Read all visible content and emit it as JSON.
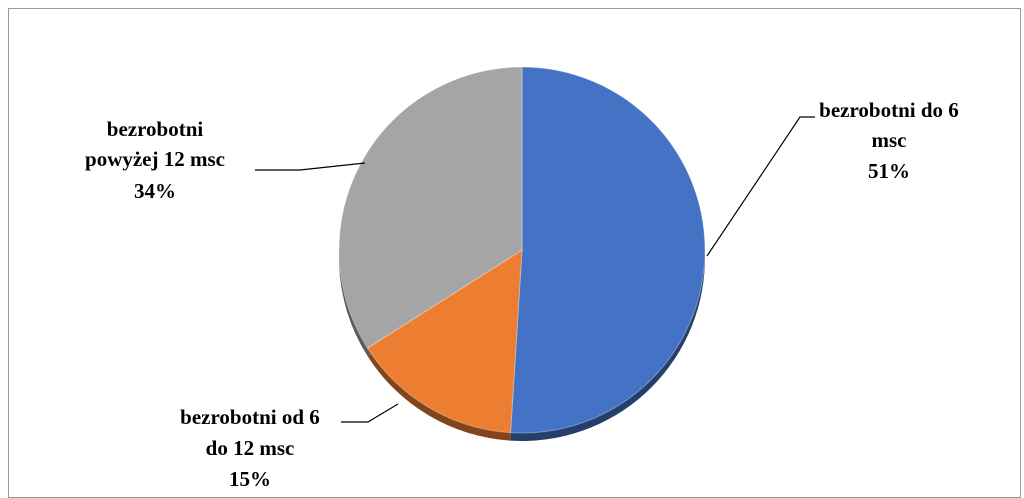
{
  "chart_data": {
    "type": "pie",
    "title": "",
    "labels": [
      "bezrobotni do 6 msc",
      "bezrobotni od 6 do 12 msc",
      "bezrobotni powyżej 12 msc"
    ],
    "values": [
      51,
      15,
      34
    ],
    "unit": "%",
    "colors": [
      "#4472C4",
      "#ED7D31",
      "#A5A5A5"
    ],
    "data_labels": [
      [
        "bezrobotni do 6",
        "msc",
        "51%"
      ],
      [
        "bezrobotni od 6",
        "do 12 msc",
        "15%"
      ],
      [
        "bezrobotni",
        "powyżej 12 msc",
        "34%"
      ]
    ],
    "style": "3d-shadow",
    "legend": "none"
  }
}
